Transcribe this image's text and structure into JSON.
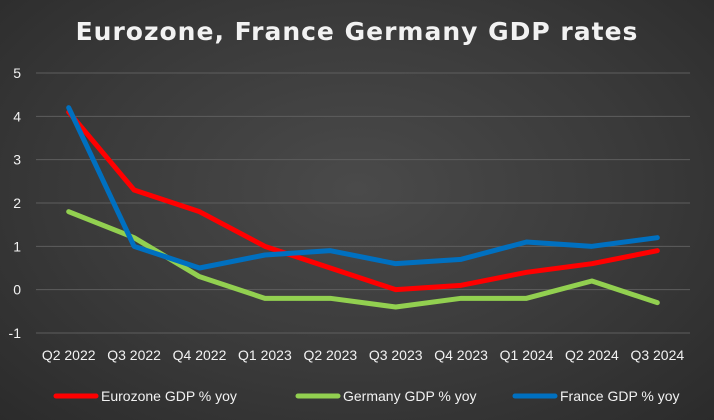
{
  "chart_data": {
    "type": "line",
    "title": "Eurozone, France Germany GDP rates",
    "xlabel": "",
    "ylabel": "",
    "ylim": [
      -1,
      5
    ],
    "yticks": [
      "5",
      "4",
      "3",
      "2",
      "1",
      "0",
      "-1"
    ],
    "categories": [
      "Q2 2022",
      "Q3 2022",
      "Q4 2022",
      "Q1 2023",
      "Q2 2023",
      "Q3 2023",
      "Q4 2023",
      "Q1 2024",
      "Q2 2024",
      "Q3 2024"
    ],
    "grid": true,
    "legend_position": "bottom",
    "series": [
      {
        "name": "Eurozone GDP % yoy",
        "color": "#ff0000",
        "values": [
          4.1,
          2.3,
          1.8,
          1.0,
          0.5,
          0.0,
          0.1,
          0.4,
          0.6,
          0.9
        ]
      },
      {
        "name": "Germany GDP % yoy",
        "color": "#92d050",
        "values": [
          1.8,
          1.2,
          0.3,
          -0.2,
          -0.2,
          -0.4,
          -0.2,
          -0.2,
          0.2,
          -0.3
        ]
      },
      {
        "name": "France GDP % yoy",
        "color": "#0070c0",
        "values": [
          4.2,
          1.0,
          0.5,
          0.8,
          0.9,
          0.6,
          0.7,
          1.1,
          1.0,
          1.2
        ]
      }
    ]
  }
}
